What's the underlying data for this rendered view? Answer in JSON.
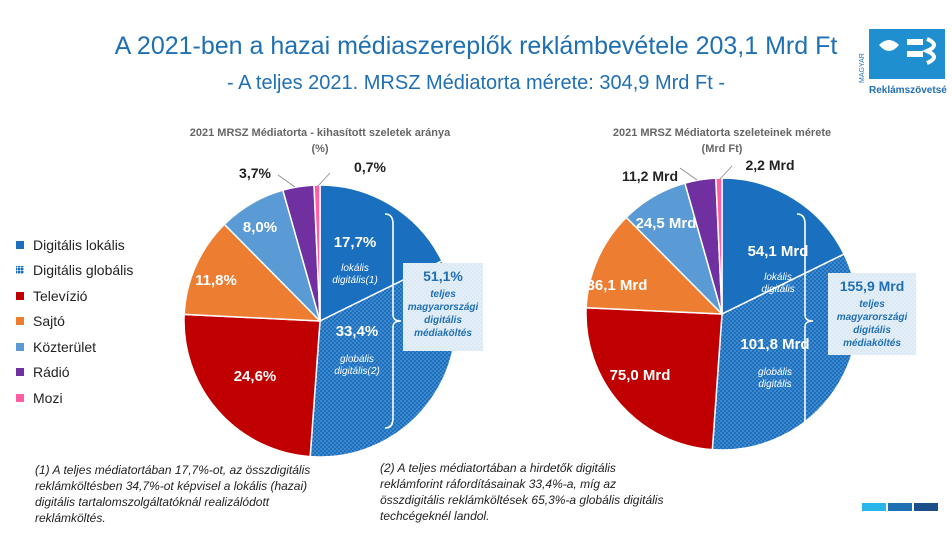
{
  "title": "A 2021-ben a hazai médiaszereplők reklámbevétele 203,1 Mrd Ft",
  "subtitle": "- A teljes 2021. MRSZ Médiatorta mérete: 304,9 Mrd Ft -",
  "logo": {
    "line1": "MAGYAR",
    "line2": "Reklámszövetség"
  },
  "legend": [
    {
      "label": "Digitális lokális",
      "color": "#1a6fbe"
    },
    {
      "label": "Digitális globális",
      "color": "#1a6fbe"
    },
    {
      "label": "Televízió",
      "color": "#c00000"
    },
    {
      "label": "Sajtó",
      "color": "#ed7d31"
    },
    {
      "label": "Közterület",
      "color": "#5b9bd5"
    },
    {
      "label": "Rádió",
      "color": "#7030a0"
    },
    {
      "label": "Mozi",
      "color": "#ff5fa2"
    }
  ],
  "chart_data": [
    {
      "type": "pie",
      "title": "2021 MRSZ Médiatorta - kihasított szeletek aránya",
      "subtitle": "(%)",
      "categories": [
        "Digitális lokális",
        "Digitális globális",
        "Televízió",
        "Sajtó",
        "Közterület",
        "Rádió",
        "Mozi"
      ],
      "values": [
        17.7,
        33.4,
        24.6,
        11.8,
        8.0,
        3.7,
        0.7
      ],
      "labels": [
        "17,7%",
        "33,4%",
        "24,6%",
        "11,8%",
        "8,0%",
        "3,7%",
        "0,7%"
      ],
      "slice_notes": [
        "lokális digitális(1)",
        "globális digitális(2)",
        "",
        "",
        "",
        "",
        ""
      ],
      "bracket": {
        "value": "51,1%",
        "text": "teljes magyarországi digitális médiaköltés"
      }
    },
    {
      "type": "pie",
      "title": "2021 MRSZ Médiatorta szeleteinek mérete",
      "subtitle": "(Mrd Ft)",
      "categories": [
        "Digitális lokális",
        "Digitális globális",
        "Televízió",
        "Sajtó",
        "Közterület",
        "Rádió",
        "Mozi"
      ],
      "values": [
        54.1,
        101.8,
        75.0,
        36.1,
        24.5,
        11.2,
        2.2
      ],
      "labels": [
        "54,1 Mrd",
        "101,8 Mrd",
        "75,0 Mrd",
        "36,1 Mrd",
        "24,5 Mrd",
        "11,2 Mrd",
        "2,2 Mrd"
      ],
      "slice_notes": [
        "lokális digitális",
        "globális digitális",
        "",
        "",
        "",
        "",
        ""
      ],
      "bracket": {
        "value": "155,9 Mrd",
        "text": "teljes magyarországi digitális médiaköltés"
      }
    }
  ],
  "footnotes": {
    "note1": [
      "(1) A teljes médiatortában 17,7%-ot, az összdigitális",
      "reklámköltésben 34,7%-ot  képvisel a lokális (hazai)",
      "digitális tartalomszolgáltatóknál realizálódott",
      "reklámköltés."
    ],
    "note2": [
      "(2) A teljes médiatortában a hirdetők digitális",
      "reklámforint ráfordításainak 33,4%-a, míg az",
      "összdigitális reklámköltések 65,3%-a globális digitális",
      "techcégeknél landol."
    ]
  },
  "colors": {
    "accent": "#1f6fb3",
    "bar_light": "#29b6e8",
    "bar_mid": "#1f6fb3",
    "bar_dark": "#1b4f8a"
  }
}
